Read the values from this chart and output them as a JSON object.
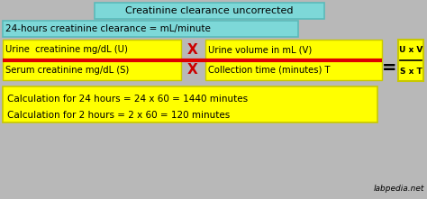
{
  "bg_color": "#b8b8b8",
  "title_text": "Creatinine clearance uncorrected",
  "title_bg": "#7dd8d8",
  "title_border": "#5bbaba",
  "clearance_text": "24-hours creatinine clearance = mL/minute",
  "clearance_bg": "#7dd8d8",
  "clearance_border": "#5bbaba",
  "urine_text": "Urine  creatinine mg/dL (U)",
  "urine_vol_text": "Urine volume in mL (V)",
  "serum_text": "Serum creatinine mg/dL (S)",
  "collect_text": "Collection time (minutes) T",
  "yellow_bg": "#ffff00",
  "yellow_border": "#c8c800",
  "red_color": "#dd0000",
  "x_color": "#cc0000",
  "formula_num": "U x V",
  "formula_den": "S x T",
  "calc1": "Calculation for 24 hours = 24 x 60 = 1440 minutes",
  "calc2": "Calculation for 2 hours = 2 x 60 = 120 minutes",
  "watermark": "labpedia.net",
  "black": "#000000",
  "equal_color": "#000000"
}
